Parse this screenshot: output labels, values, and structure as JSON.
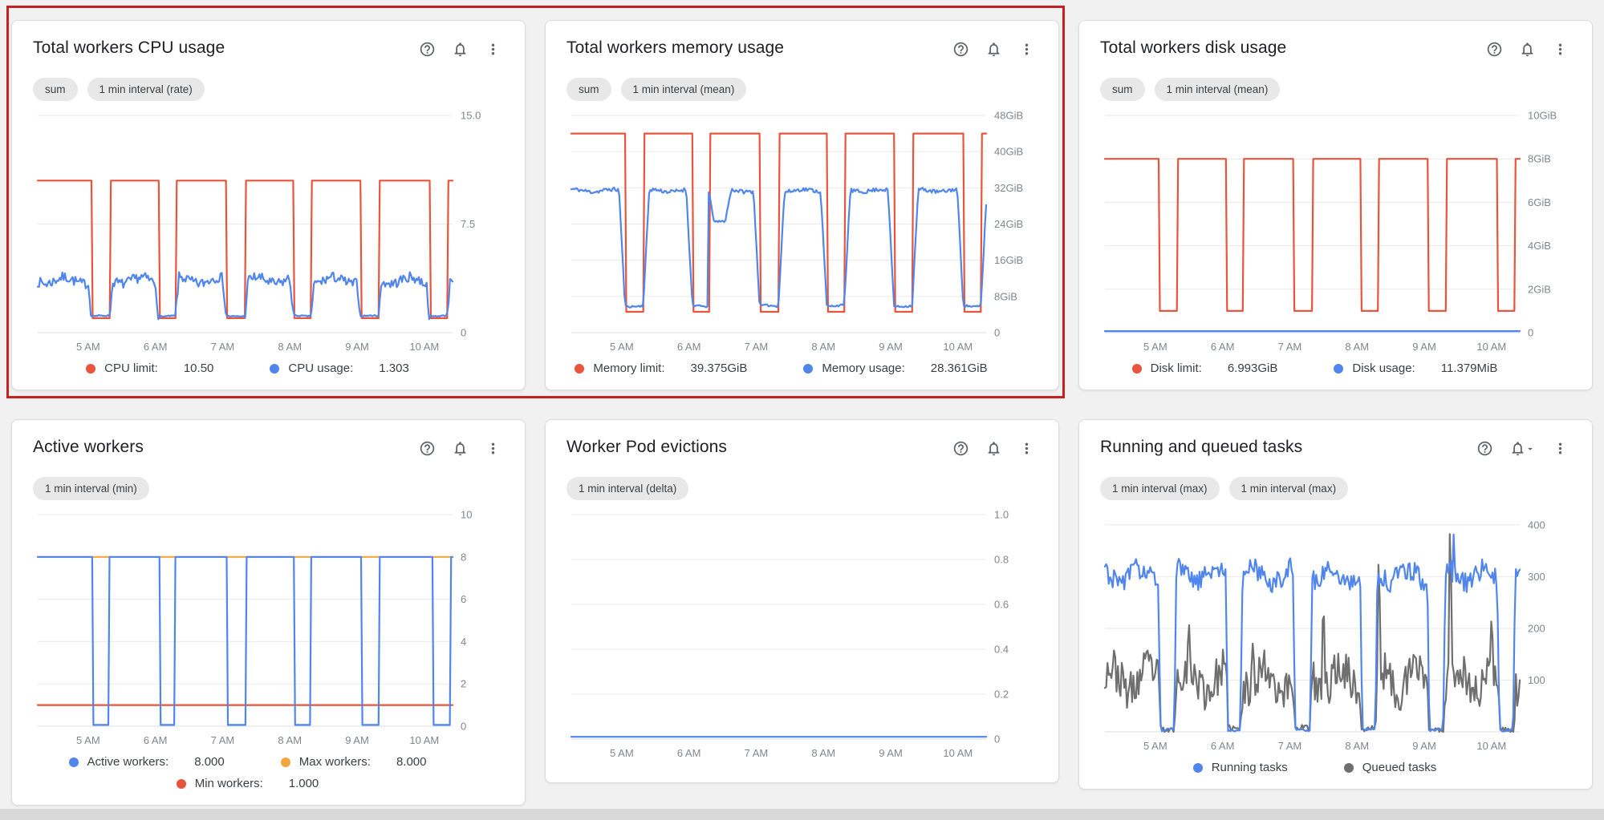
{
  "page": {
    "background": "#f1f1f1",
    "highlight_color": "#c5221f",
    "icons": [
      "help-icon",
      "notifications-bell-icon",
      "dropdown-caret-icon",
      "more-vert-icon"
    ]
  },
  "chart_data": [
    {
      "id": "total-workers-cpu-usage",
      "type": "line",
      "title": "Total workers CPU usage",
      "chips": [
        "sum",
        "1 min interval (rate)"
      ],
      "bell_caret": false,
      "x_tick_values": [
        5,
        6,
        7,
        8,
        9,
        10
      ],
      "x_tick_labels": [
        "5 AM",
        "6 AM",
        "7 AM",
        "8 AM",
        "9 AM",
        "10 AM"
      ],
      "x_range": [
        4.25,
        10.42
      ],
      "y_range": [
        0,
        15
      ],
      "y_ticks": [
        {
          "v": 0,
          "t": "0"
        },
        {
          "v": 7.5,
          "t": "7.5"
        },
        {
          "v": 15,
          "t": "15.0"
        }
      ],
      "series": [
        {
          "name": "CPU limit",
          "type": "step",
          "color": "#e8543c",
          "high": 10.5,
          "low": 1.0,
          "dips": [
            [
              5.05,
              5.32
            ],
            [
              6.05,
              6.3
            ],
            [
              7.05,
              7.33
            ],
            [
              8.05,
              8.31
            ],
            [
              9.05,
              9.32
            ],
            [
              10.08,
              10.34
            ]
          ]
        },
        {
          "name": "CPU usage",
          "type": "noisy",
          "color": "#5086ec",
          "base": 3.6,
          "noise": 0.45,
          "low": 1.15,
          "dip_noise": 0.12,
          "blend": 0.05,
          "seed": 7,
          "dips": [
            [
              5.05,
              5.32
            ],
            [
              6.05,
              6.3
            ],
            [
              7.05,
              7.33
            ],
            [
              8.05,
              8.31
            ],
            [
              9.05,
              9.32
            ],
            [
              10.08,
              10.34
            ]
          ]
        }
      ],
      "legend": [
        [
          {
            "color": "#e8543c",
            "label": "CPU limit:",
            "value": "10.50"
          },
          {
            "color": "#5086ec",
            "label": "CPU usage:",
            "value": "1.303"
          }
        ]
      ]
    },
    {
      "id": "total-workers-memory-usage",
      "type": "line",
      "title": "Total workers memory usage",
      "chips": [
        "sum",
        "1 min interval (mean)"
      ],
      "bell_caret": false,
      "x_tick_values": [
        5,
        6,
        7,
        8,
        9,
        10
      ],
      "x_tick_labels": [
        "5 AM",
        "6 AM",
        "7 AM",
        "8 AM",
        "9 AM",
        "10 AM"
      ],
      "x_range": [
        4.25,
        10.42
      ],
      "y_range": [
        0,
        48
      ],
      "y_ticks": [
        {
          "v": 0,
          "t": "0"
        },
        {
          "v": 8,
          "t": "8GiB"
        },
        {
          "v": 16,
          "t": "16GiB"
        },
        {
          "v": 24,
          "t": "24GiB"
        },
        {
          "v": 32,
          "t": "32GiB"
        },
        {
          "v": 40,
          "t": "40GiB"
        },
        {
          "v": 48,
          "t": "48GiB"
        }
      ],
      "series": [
        {
          "name": "Memory limit",
          "type": "step",
          "color": "#e8543c",
          "high": 44,
          "low": 4.6,
          "dips": [
            [
              5.05,
              5.32
            ],
            [
              6.05,
              6.3
            ],
            [
              7.05,
              7.33
            ],
            [
              8.05,
              8.31
            ],
            [
              9.05,
              9.32
            ],
            [
              10.08,
              10.34
            ]
          ]
        },
        {
          "name": "Memory usage",
          "type": "noisy",
          "color": "#5086ec",
          "base": 31.4,
          "noise": 0.55,
          "low": 5.9,
          "dip_noise": 0.5,
          "blend": 0.09,
          "seed": 11,
          "dips": [
            [
              5.05,
              5.32
            ],
            [
              6.05,
              6.3
            ],
            [
              6.38,
              6.54,
              24.5
            ],
            [
              7.05,
              7.33
            ],
            [
              8.05,
              8.31
            ],
            [
              9.05,
              9.32
            ],
            [
              10.08,
              10.34
            ]
          ]
        }
      ],
      "legend": [
        [
          {
            "color": "#e8543c",
            "label": "Memory limit:",
            "value": "39.375GiB"
          },
          {
            "color": "#5086ec",
            "label": "Memory usage:",
            "value": "28.361GiB"
          }
        ]
      ]
    },
    {
      "id": "total-workers-disk-usage",
      "type": "line",
      "title": "Total workers disk usage",
      "chips": [
        "sum",
        "1 min interval (mean)"
      ],
      "bell_caret": false,
      "x_tick_values": [
        5,
        6,
        7,
        8,
        9,
        10
      ],
      "x_tick_labels": [
        "5 AM",
        "6 AM",
        "7 AM",
        "8 AM",
        "9 AM",
        "10 AM"
      ],
      "x_range": [
        4.25,
        10.42
      ],
      "y_range": [
        0,
        10
      ],
      "y_ticks": [
        {
          "v": 0,
          "t": "0"
        },
        {
          "v": 2,
          "t": "2GiB"
        },
        {
          "v": 4,
          "t": "4GiB"
        },
        {
          "v": 6,
          "t": "6GiB"
        },
        {
          "v": 8,
          "t": "8GiB"
        },
        {
          "v": 10,
          "t": "10GiB"
        }
      ],
      "series": [
        {
          "name": "Disk limit",
          "type": "step",
          "color": "#e8543c",
          "high": 8,
          "low": 1.0,
          "dips": [
            [
              5.05,
              5.32
            ],
            [
              6.05,
              6.3
            ],
            [
              7.05,
              7.33
            ],
            [
              8.05,
              8.31
            ],
            [
              9.05,
              9.32
            ],
            [
              10.08,
              10.34
            ]
          ]
        },
        {
          "name": "Disk usage",
          "type": "flat",
          "color": "#5086ec",
          "level": 0.07
        }
      ],
      "legend": [
        [
          {
            "color": "#e8543c",
            "label": "Disk limit:",
            "value": "6.993GiB"
          },
          {
            "color": "#5086ec",
            "label": "Disk usage:",
            "value": "11.379MiB"
          }
        ]
      ]
    },
    {
      "id": "active-workers",
      "type": "line",
      "title": "Active workers",
      "chips": [
        "1 min interval (min)"
      ],
      "bell_caret": false,
      "x_tick_values": [
        5,
        6,
        7,
        8,
        9,
        10
      ],
      "x_tick_labels": [
        "5 AM",
        "6 AM",
        "7 AM",
        "8 AM",
        "9 AM",
        "10 AM"
      ],
      "x_range": [
        4.25,
        10.42
      ],
      "y_range": [
        0,
        10
      ],
      "y_ticks": [
        {
          "v": 0,
          "t": "0"
        },
        {
          "v": 2,
          "t": "2"
        },
        {
          "v": 4,
          "t": "4"
        },
        {
          "v": 6,
          "t": "6"
        },
        {
          "v": 8,
          "t": "8"
        },
        {
          "v": 10,
          "t": "10"
        }
      ],
      "series": [
        {
          "name": "Max workers",
          "type": "flat",
          "color": "#f2a73d",
          "level": 8
        },
        {
          "name": "Min workers",
          "type": "flat",
          "color": "#e8543c",
          "level": 1
        },
        {
          "name": "Active workers",
          "type": "step",
          "color": "#5086ec",
          "high": 8,
          "low": 0.06,
          "dips": [
            [
              5.06,
              5.3
            ],
            [
              6.06,
              6.28
            ],
            [
              7.06,
              7.34
            ],
            [
              8.06,
              8.3
            ],
            [
              9.06,
              9.32
            ],
            [
              10.12,
              10.38
            ]
          ]
        }
      ],
      "legend": [
        [
          {
            "color": "#5086ec",
            "label": "Active workers:",
            "value": "8.000"
          },
          {
            "color": "#f2a73d",
            "label": "Max workers:",
            "value": "8.000"
          }
        ],
        [
          {
            "color": "#e8543c",
            "label": "Min workers:",
            "value": "1.000"
          }
        ]
      ]
    },
    {
      "id": "worker-pod-evictions",
      "type": "line",
      "title": "Worker Pod evictions",
      "chips": [
        "1 min interval (delta)"
      ],
      "bell_caret": false,
      "x_tick_values": [
        5,
        6,
        7,
        8,
        9,
        10
      ],
      "x_tick_labels": [
        "5 AM",
        "6 AM",
        "7 AM",
        "8 AM",
        "9 AM",
        "10 AM"
      ],
      "x_range": [
        4.25,
        10.42
      ],
      "y_range": [
        0,
        1
      ],
      "y_ticks": [
        {
          "v": 0,
          "t": "0"
        },
        {
          "v": 0.2,
          "t": "0.2"
        },
        {
          "v": 0.4,
          "t": "0.4"
        },
        {
          "v": 0.6,
          "t": "0.6"
        },
        {
          "v": 0.8,
          "t": "0.8"
        },
        {
          "v": 1.0,
          "t": "1.0"
        }
      ],
      "series": [
        {
          "name": "Evictions",
          "type": "flat",
          "color": "#5086ec",
          "level": 0.01
        }
      ],
      "legend": []
    },
    {
      "id": "running-and-queued-tasks",
      "type": "line",
      "title": "Running and queued tasks",
      "chips": [
        "1 min interval (max)",
        "1 min interval (max)"
      ],
      "bell_caret": true,
      "x_tick_values": [
        5,
        6,
        7,
        8,
        9,
        10
      ],
      "x_tick_labels": [
        "5 AM",
        "6 AM",
        "7 AM",
        "8 AM",
        "9 AM",
        "10 AM"
      ],
      "x_range": [
        4.25,
        10.42
      ],
      "y_range": [
        0,
        420
      ],
      "y_ticks": [
        {
          "v": 100,
          "t": "100"
        },
        {
          "v": 200,
          "t": "200"
        },
        {
          "v": 300,
          "t": "300"
        },
        {
          "v": 400,
          "t": "400"
        }
      ],
      "series": [
        {
          "name": "Queued tasks",
          "type": "noisy",
          "color": "#6f6f6f",
          "base": 102,
          "noise": 48,
          "low": 6,
          "dip_noise": 0.15,
          "blend": 0.04,
          "seed": 23,
          "dips": [
            [
              5.08,
              5.28
            ],
            [
              6.08,
              6.26
            ],
            [
              7.08,
              7.3
            ],
            [
              8.08,
              8.27
            ],
            [
              9.08,
              9.28
            ],
            [
              10.12,
              10.32
            ]
          ],
          "spikes": [
            [
              5.5,
              215
            ],
            [
              6.45,
              175
            ],
            [
              7.5,
              250
            ],
            [
              8.32,
              330
            ],
            [
              9.38,
              388
            ],
            [
              10.0,
              225
            ]
          ]
        },
        {
          "name": "Running tasks",
          "type": "noisy",
          "color": "#5086ec",
          "base": 303,
          "noise": 26,
          "low": 4,
          "dip_noise": 0.1,
          "blend": 0.035,
          "seed": 31,
          "dips": [
            [
              5.08,
              5.28
            ],
            [
              6.08,
              6.26
            ],
            [
              7.08,
              7.3
            ],
            [
              8.08,
              8.27
            ],
            [
              9.08,
              9.28
            ],
            [
              10.12,
              10.32
            ]
          ],
          "spikes": [
            [
              9.44,
              398
            ]
          ]
        }
      ],
      "legend": [
        [
          {
            "color": "#5086ec",
            "label": "Running tasks",
            "value": ""
          },
          {
            "color": "#6f6f6f",
            "label": "Queued tasks",
            "value": ""
          }
        ]
      ]
    }
  ]
}
